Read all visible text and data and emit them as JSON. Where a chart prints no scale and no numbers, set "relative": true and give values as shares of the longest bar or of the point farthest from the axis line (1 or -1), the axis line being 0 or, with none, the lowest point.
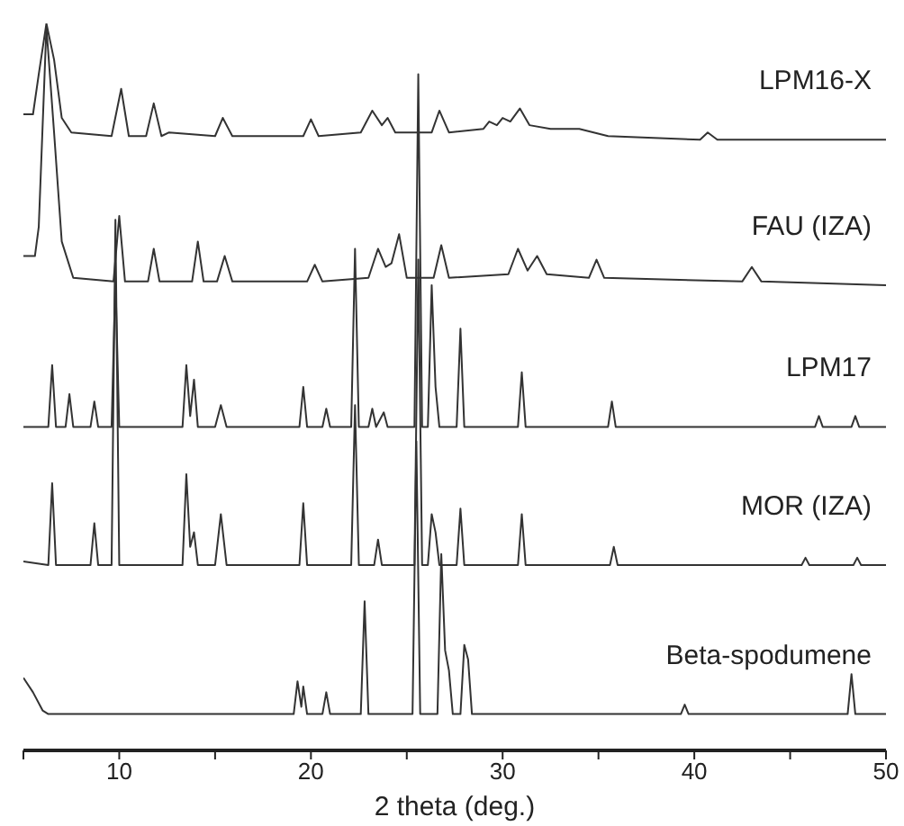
{
  "chart_data": {
    "type": "line",
    "xlabel": "2 theta (deg.)",
    "relative": true,
    "legend": false,
    "marker": "none",
    "line_style": "solid",
    "xlim": [
      5,
      50
    ],
    "xticks": [
      {
        "value": 5,
        "label": null
      },
      10,
      {
        "value": 15,
        "label": null
      },
      20,
      {
        "value": 25,
        "label": null
      },
      30,
      {
        "value": 35,
        "label": null
      },
      40,
      {
        "value": 45,
        "label": null
      },
      50
    ],
    "series": [
      {
        "name": "LPM16-X",
        "color": "#333333",
        "x": [
          5,
          5.5,
          5.8,
          6.2,
          6.6,
          7.0,
          7.5,
          9.6,
          10.1,
          10.5,
          11.4,
          11.8,
          12.2,
          12.6,
          15.0,
          15.4,
          15.9,
          19.6,
          20.0,
          20.4,
          22.6,
          23.2,
          23.7,
          24.0,
          24.4,
          26.3,
          26.7,
          27.2,
          29.0,
          29.3,
          29.7,
          30.0,
          30.4,
          30.9,
          31.4,
          32.5,
          34.0,
          35.5,
          40.3,
          40.7,
          41.2,
          45,
          50
        ],
        "values": [
          0.875,
          0.875,
          0.93,
          1,
          0.95,
          0.87,
          0.85,
          0.845,
          0.91,
          0.845,
          0.845,
          0.89,
          0.845,
          0.85,
          0.845,
          0.87,
          0.845,
          0.845,
          0.868,
          0.845,
          0.85,
          0.88,
          0.86,
          0.87,
          0.85,
          0.85,
          0.88,
          0.85,
          0.855,
          0.865,
          0.86,
          0.87,
          0.865,
          0.883,
          0.86,
          0.855,
          0.855,
          0.845,
          0.84,
          0.85,
          0.84,
          0.84,
          0.84
        ]
      },
      {
        "name": "FAU (IZA)",
        "color": "#333333",
        "x": [
          5,
          5.6,
          5.8,
          6.2,
          6.6,
          7.0,
          7.6,
          9.7,
          10.0,
          10.3,
          11.5,
          11.8,
          12.1,
          13.8,
          14.1,
          14.4,
          15.1,
          15.5,
          15.9,
          19.8,
          20.2,
          20.6,
          23.0,
          23.5,
          23.9,
          24.2,
          24.6,
          25.0,
          26.4,
          26.8,
          27.2,
          30.3,
          30.8,
          31.3,
          31.8,
          32.3,
          34.5,
          34.9,
          35.3,
          42.5,
          43.0,
          43.5,
          50
        ],
        "values": [
          0.68,
          0.68,
          0.72,
          0.995,
          0.85,
          0.7,
          0.65,
          0.645,
          0.735,
          0.645,
          0.645,
          0.69,
          0.645,
          0.645,
          0.7,
          0.645,
          0.645,
          0.68,
          0.645,
          0.645,
          0.668,
          0.645,
          0.65,
          0.69,
          0.665,
          0.67,
          0.71,
          0.65,
          0.65,
          0.695,
          0.65,
          0.655,
          0.69,
          0.66,
          0.68,
          0.655,
          0.65,
          0.675,
          0.65,
          0.645,
          0.665,
          0.645,
          0.64
        ]
      },
      {
        "name": "LPM17",
        "color": "#333333",
        "x": [
          5,
          6.3,
          6.5,
          6.7,
          7.2,
          7.4,
          7.6,
          8.5,
          8.7,
          8.9,
          9.6,
          9.8,
          10.0,
          13.3,
          13.5,
          13.7,
          13.9,
          14.1,
          15.0,
          15.3,
          15.6,
          19.4,
          19.6,
          19.8,
          20.6,
          20.8,
          21.0,
          22.1,
          22.3,
          22.5,
          23.0,
          23.2,
          23.4,
          23.8,
          24.0,
          25.4,
          25.6,
          25.8,
          26.1,
          26.3,
          26.5,
          26.7,
          27.6,
          27.8,
          28.0,
          30.8,
          31.0,
          31.2,
          35.5,
          35.7,
          35.9,
          46.3,
          46.5,
          46.7,
          48.2,
          48.4,
          48.6,
          50
        ],
        "values": [
          0.445,
          0.445,
          0.53,
          0.445,
          0.445,
          0.49,
          0.445,
          0.445,
          0.48,
          0.445,
          0.445,
          0.65,
          0.445,
          0.445,
          0.53,
          0.46,
          0.51,
          0.445,
          0.445,
          0.475,
          0.445,
          0.445,
          0.5,
          0.445,
          0.445,
          0.47,
          0.445,
          0.445,
          0.69,
          0.445,
          0.445,
          0.47,
          0.445,
          0.465,
          0.445,
          0.445,
          0.93,
          0.445,
          0.445,
          0.64,
          0.5,
          0.445,
          0.445,
          0.58,
          0.445,
          0.445,
          0.52,
          0.445,
          0.445,
          0.48,
          0.445,
          0.445,
          0.46,
          0.445,
          0.445,
          0.46,
          0.445,
          0.445
        ]
      },
      {
        "name": "MOR (IZA)",
        "color": "#333333",
        "x": [
          5,
          6.3,
          6.5,
          6.7,
          8.5,
          8.7,
          8.9,
          9.6,
          9.8,
          10.0,
          13.3,
          13.5,
          13.7,
          13.9,
          14.1,
          15.0,
          15.3,
          15.6,
          19.4,
          19.6,
          19.8,
          22.1,
          22.3,
          22.5,
          23.3,
          23.5,
          23.7,
          25.4,
          25.6,
          25.8,
          26.1,
          26.3,
          26.5,
          26.7,
          27.6,
          27.8,
          28.0,
          30.8,
          31.0,
          31.2,
          35.6,
          35.8,
          36.0,
          45.6,
          45.8,
          46.0,
          48.3,
          48.5,
          48.7,
          50
        ],
        "values": [
          0.26,
          0.255,
          0.3675,
          0.255,
          0.255,
          0.3125,
          0.255,
          0.255,
          0.73,
          0.255,
          0.255,
          0.38,
          0.28,
          0.3,
          0.255,
          0.255,
          0.325,
          0.255,
          0.255,
          0.34,
          0.255,
          0.255,
          0.475,
          0.255,
          0.255,
          0.29,
          0.255,
          0.255,
          0.675,
          0.255,
          0.255,
          0.325,
          0.3,
          0.255,
          0.255,
          0.3325,
          0.255,
          0.255,
          0.325,
          0.255,
          0.255,
          0.28,
          0.255,
          0.255,
          0.265,
          0.255,
          0.255,
          0.265,
          0.255,
          0.255
        ]
      },
      {
        "name": "Beta-spodumene",
        "color": "#333333",
        "x": [
          5,
          5.5,
          6.0,
          6.3,
          19.1,
          19.3,
          19.5,
          19.6,
          19.8,
          20.6,
          20.8,
          21.0,
          22.6,
          22.8,
          23.0,
          25.3,
          25.5,
          25.7,
          26.6,
          26.8,
          27.0,
          27.2,
          27.4,
          27.8,
          28.0,
          28.2,
          28.4,
          39.3,
          39.5,
          39.7,
          48.0,
          48.2,
          48.4,
          50
        ],
        "values": [
          0.1,
          0.08,
          0.055,
          0.05,
          0.05,
          0.095,
          0.06,
          0.088,
          0.05,
          0.05,
          0.08,
          0.05,
          0.05,
          0.205,
          0.05,
          0.05,
          0.425,
          0.05,
          0.05,
          0.27,
          0.1375,
          0.11,
          0.05,
          0.05,
          0.145,
          0.125,
          0.05,
          0.05,
          0.063,
          0.05,
          0.05,
          0.105,
          0.05,
          0.05
        ]
      }
    ]
  }
}
